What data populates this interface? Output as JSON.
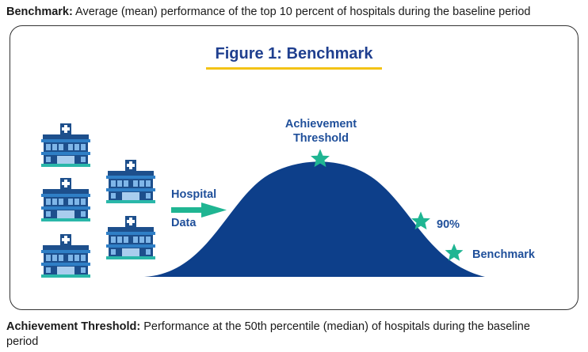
{
  "definitions": {
    "benchmark_term": "Benchmark:",
    "benchmark_text": " Average (mean) performance of the top 10 percent of hospitals during the baseline period",
    "threshold_term": "Achievement Threshold:",
    "threshold_text": " Performance at the 50th percentile (median) of hospitals during the baseline period"
  },
  "figure": {
    "title": "Figure 1:  Benchmark",
    "arrow_label_line1": "Hospital",
    "arrow_label_line2": "Data",
    "threshold_label_line1": "Achievement",
    "threshold_label_line2": "Threshold",
    "p90_label": "90%",
    "benchmark_label": "Benchmark"
  },
  "colors": {
    "curve": "#0d3f8a",
    "star": "#1fb592",
    "arrow": "#1fb592",
    "title": "#1f3f8f",
    "title_underline": "#f3c316",
    "label": "#1f4f9a",
    "hospital_body": "#1d4f8c",
    "hospital_window": "#7fb6e8"
  },
  "icons": [
    "hospital-icon",
    "arrow-right-icon",
    "star-icon"
  ]
}
